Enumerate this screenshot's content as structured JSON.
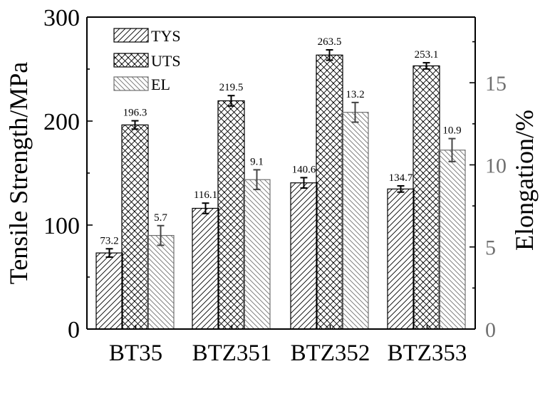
{
  "chart_data": {
    "type": "bar",
    "categories": [
      "BT35",
      "BTZ351",
      "BTZ352",
      "BTZ353"
    ],
    "series": [
      {
        "name": "TYS",
        "axis": "left",
        "values": [
          73.2,
          116.1,
          140.6,
          134.7
        ],
        "errors": [
          4,
          5,
          5,
          3
        ],
        "pattern": "diagonal"
      },
      {
        "name": "UTS",
        "axis": "left",
        "values": [
          196.3,
          219.5,
          263.5,
          253.1
        ],
        "errors": [
          4,
          5,
          5,
          3
        ],
        "pattern": "crosshatch"
      },
      {
        "name": "EL",
        "axis": "right",
        "values": [
          5.7,
          9.1,
          13.2,
          10.9
        ],
        "errors": [
          0.6,
          0.6,
          0.6,
          0.7
        ],
        "pattern": "diagonal-gray"
      }
    ],
    "data_labels": {
      "TYS": [
        "73.2",
        "116.1",
        "140.6",
        "134.7"
      ],
      "UTS": [
        "196.3",
        "219.5",
        "263.5",
        "253.1"
      ],
      "EL": [
        "5.7",
        "9.1",
        "13.2",
        "10.9"
      ]
    },
    "ylabel": "Tensile Strength/MPa",
    "y2label": "Elongation/%",
    "ylim": [
      0,
      300
    ],
    "y2lim": [
      0,
      19
    ],
    "yticks": [
      0,
      100,
      200,
      300
    ],
    "y2ticks": [
      0,
      5,
      10,
      15
    ],
    "legend_position": "top-left",
    "grid": false,
    "colors": {
      "axis": "#000000",
      "el_bar": "#707070",
      "right_axis": "#707070"
    }
  }
}
